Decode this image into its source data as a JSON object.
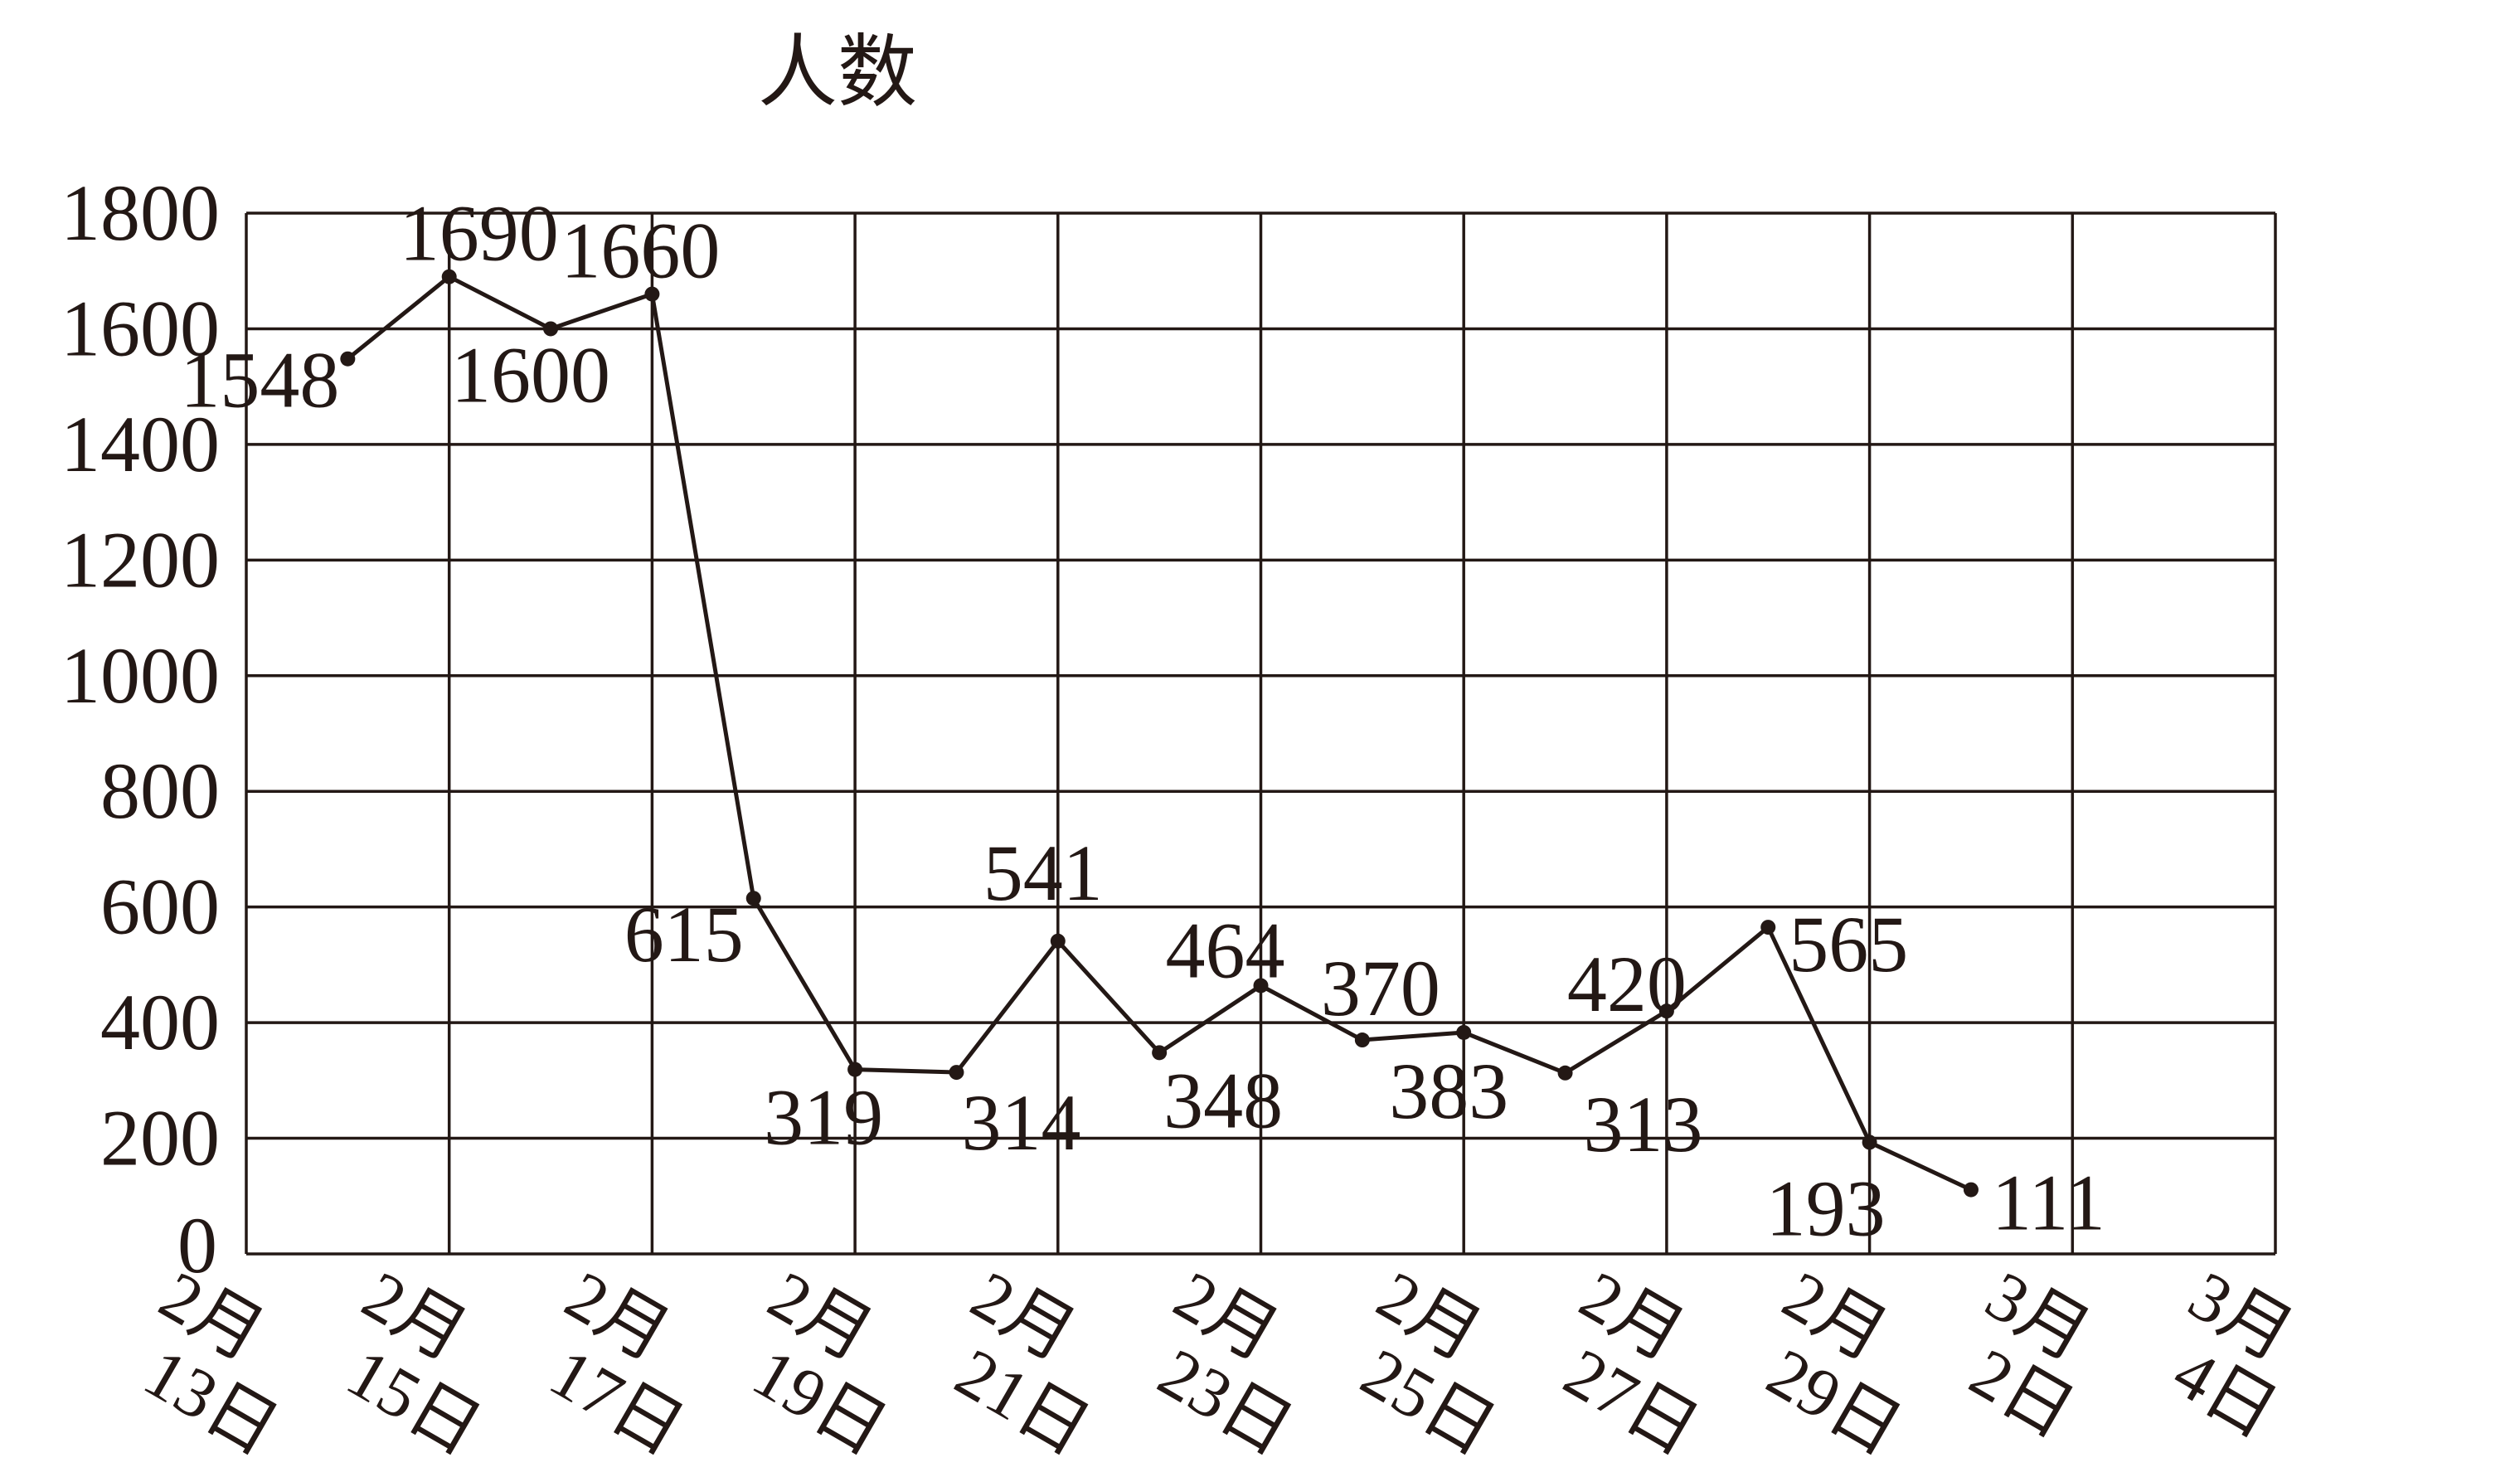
{
  "chart_data": {
    "type": "line",
    "ylabel": "人数",
    "ylim": [
      0,
      1800
    ],
    "yticks": [
      0,
      200,
      400,
      600,
      800,
      1000,
      1200,
      1400,
      1600,
      1800
    ],
    "xtick_labels": [
      {
        "month": "2月",
        "day": "13日"
      },
      {
        "month": "2月",
        "day": "15日"
      },
      {
        "month": "2月",
        "day": "17日"
      },
      {
        "month": "2月",
        "day": "19日"
      },
      {
        "month": "2月",
        "day": "21日"
      },
      {
        "month": "2月",
        "day": "23日"
      },
      {
        "month": "2月",
        "day": "25日"
      },
      {
        "month": "2月",
        "day": "27日"
      },
      {
        "month": "2月",
        "day": "29日"
      },
      {
        "month": "3月",
        "day": "2日"
      },
      {
        "month": "3月",
        "day": "4日"
      }
    ],
    "grid": true,
    "series": [
      {
        "values": [
          1548,
          1690,
          1600,
          1660,
          615,
          319,
          314,
          541,
          348,
          464,
          370,
          383,
          313,
          420,
          565,
          193,
          111
        ],
        "x": [
          "2月14日",
          "2月15日",
          "2月16日",
          "2月17日",
          "2月18日",
          "2月19日",
          "2月20日",
          "2月21日",
          "2月22日",
          "2月23日",
          "2月24日",
          "2月25日",
          "2月26日",
          "2月27日",
          "2月28日",
          "2月29日",
          "3月1日"
        ],
        "data_labels": [
          "1548",
          "1690",
          "1600",
          "1660",
          "615",
          "319",
          "314",
          "541",
          "348",
          "464",
          "370",
          "383",
          "313",
          "420",
          "565",
          "193",
          "111"
        ]
      }
    ],
    "colors": {
      "ink": "#231815"
    }
  }
}
